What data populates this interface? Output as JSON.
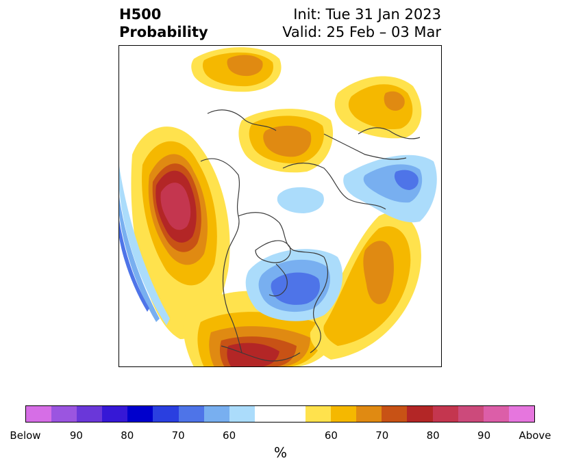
{
  "title": {
    "left_line1": "H500",
    "left_line2": "Probability",
    "right_line1": "Init: Tue 31 Jan 2023",
    "right_line2": "Valid: 25 Feb – 03 Mar"
  },
  "map": {
    "projection": "north-polar-stereographic",
    "region": "North America / North Atlantic / North Pacific",
    "below_anomalies": [
      {
        "area": "eastern Canada / Hudson Bay",
        "peak_percent": 70
      },
      {
        "area": "far north Atlantic / Greenland Sea",
        "peak_percent": 60
      },
      {
        "area": "northeastern Europe / Scandinavia",
        "peak_percent": 70
      },
      {
        "area": "northeast Pacific edge",
        "peak_percent": 75
      }
    ],
    "above_anomalies": [
      {
        "area": "Gulf of Alaska / northeast Pacific",
        "peak_percent": 85
      },
      {
        "area": "southern United States / Mexico",
        "peak_percent": 80
      },
      {
        "area": "central North Atlantic",
        "peak_percent": 70
      },
      {
        "area": "northern Siberia",
        "peak_percent": 70
      },
      {
        "area": "Kara Sea / Arctic Russia",
        "peak_percent": 70
      },
      {
        "area": "western Arctic",
        "peak_percent": 65
      }
    ]
  },
  "colorbar": {
    "colors": [
      "#d66ee6",
      "#9b55e0",
      "#6a37d9",
      "#3618d6",
      "#0000cc",
      "#2a3fe0",
      "#4e74e8",
      "#78aff0",
      "#abdcfb",
      "#ffffff",
      "#ffffff",
      "#ffe24d",
      "#f5b800",
      "#e08a12",
      "#c85215",
      "#b32626",
      "#c4364f",
      "#cc4a7b",
      "#dc5ea8",
      "#e676de"
    ],
    "tick_labels": [
      "Below",
      "90",
      "80",
      "70",
      "60",
      "60",
      "70",
      "80",
      "90",
      "Above"
    ],
    "units": "%"
  }
}
